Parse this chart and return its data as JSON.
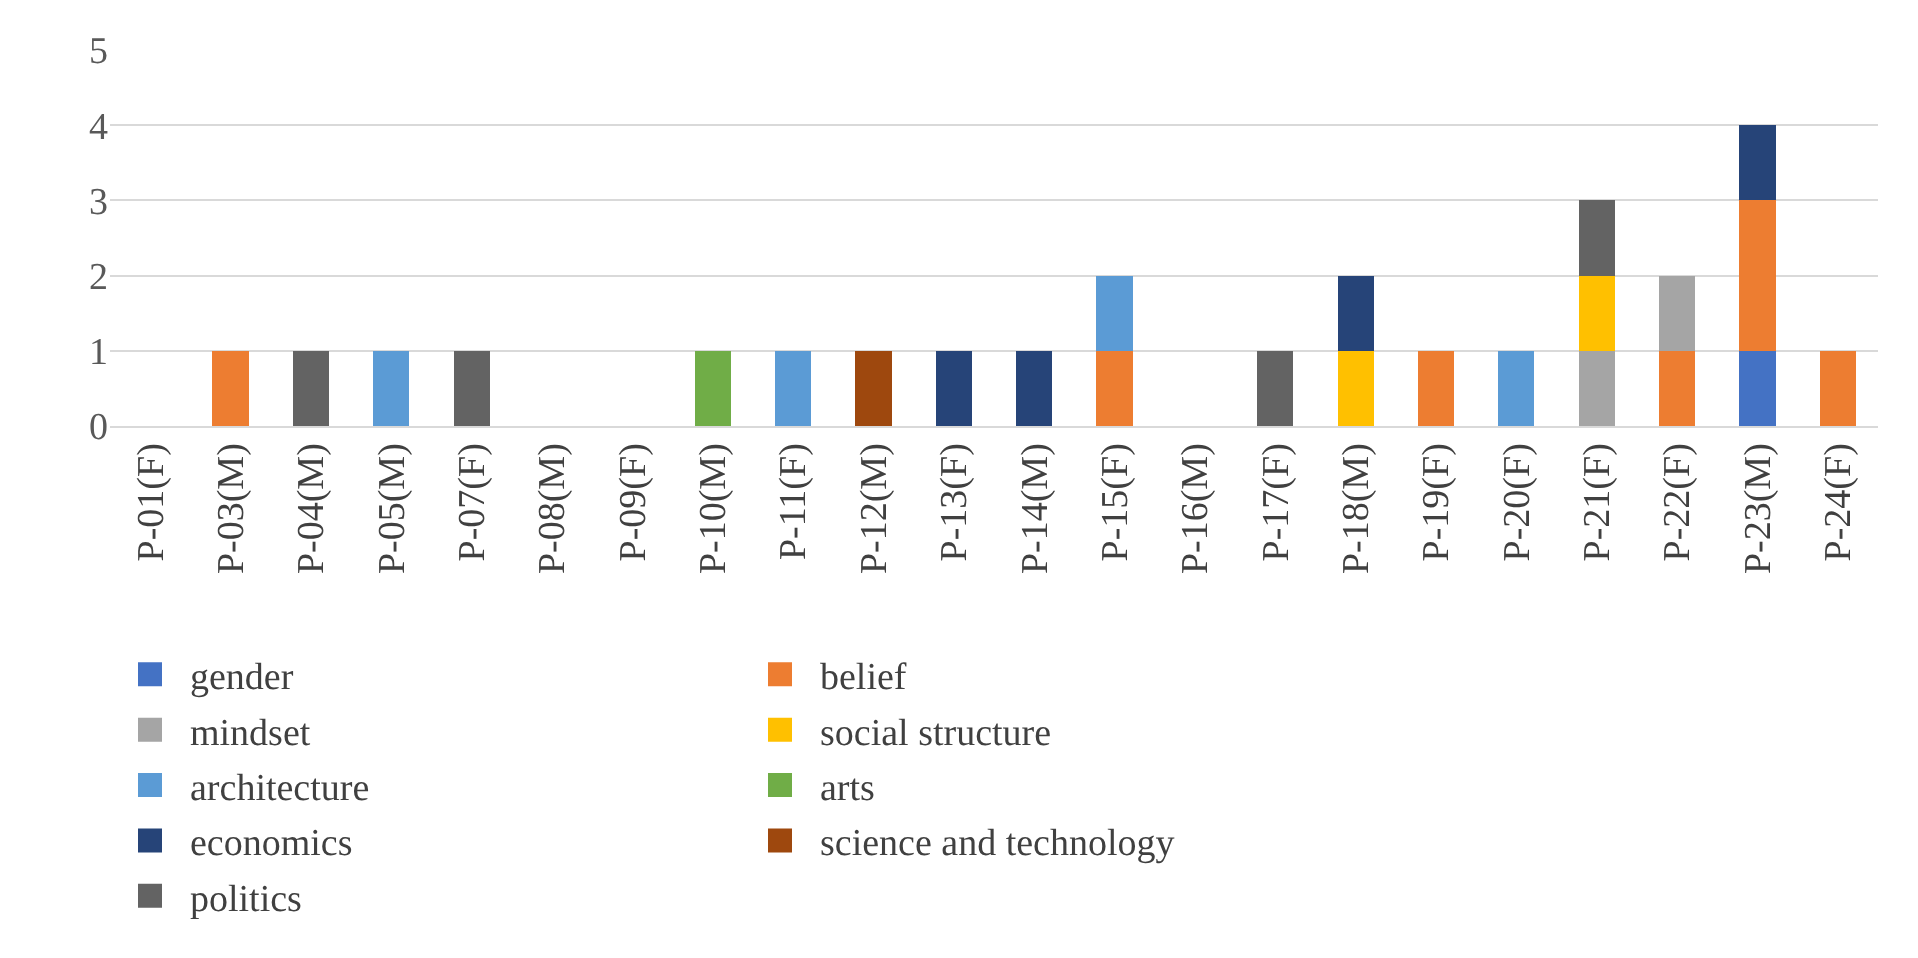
{
  "chart_data": {
    "type": "bar",
    "stacked": true,
    "categories": [
      "P-01(F)",
      "P-03(M)",
      "P-04(M)",
      "P-05(M)",
      "P-07(F)",
      "P-08(M)",
      "P-09(F)",
      "P-10(M)",
      "P-11(F)",
      "P-12(M)",
      "P-13(F)",
      "P-14(M)",
      "P-15(F)",
      "P-16(M)",
      "P-17(F)",
      "P-18(M)",
      "P-19(F)",
      "P-20(F)",
      "P-21(F)",
      "P-22(F)",
      "P-23(M)",
      "P-24(F)"
    ],
    "series": [
      {
        "name": "gender",
        "color": "#4472c4",
        "values": [
          0,
          0,
          0,
          0,
          0,
          0,
          0,
          0,
          0,
          0,
          0,
          0,
          0,
          0,
          0,
          0,
          0,
          0,
          0,
          0,
          1,
          0
        ]
      },
      {
        "name": "belief",
        "color": "#ed7d31",
        "values": [
          0,
          1,
          0,
          0,
          0,
          0,
          0,
          0,
          0,
          0,
          0,
          0,
          1,
          0,
          0,
          0,
          1,
          0,
          0,
          1,
          2,
          1
        ]
      },
      {
        "name": "mindset",
        "color": "#a5a5a5",
        "values": [
          0,
          0,
          0,
          0,
          0,
          0,
          0,
          0,
          0,
          0,
          0,
          0,
          0,
          0,
          0,
          0,
          0,
          0,
          1,
          1,
          0,
          0
        ]
      },
      {
        "name": "social structure",
        "color": "#ffc000",
        "values": [
          0,
          0,
          0,
          0,
          0,
          0,
          0,
          0,
          0,
          0,
          0,
          0,
          0,
          0,
          0,
          1,
          0,
          0,
          1,
          0,
          0,
          0
        ]
      },
      {
        "name": "architecture",
        "color": "#5b9bd5",
        "values": [
          0,
          0,
          0,
          1,
          0,
          0,
          0,
          0,
          1,
          0,
          0,
          0,
          1,
          0,
          0,
          0,
          0,
          1,
          0,
          0,
          0,
          0
        ]
      },
      {
        "name": "arts",
        "color": "#70ad47",
        "values": [
          0,
          0,
          0,
          0,
          0,
          0,
          0,
          1,
          0,
          0,
          0,
          0,
          0,
          0,
          0,
          0,
          0,
          0,
          0,
          0,
          0,
          0
        ]
      },
      {
        "name": "economics",
        "color": "#264478",
        "values": [
          0,
          0,
          0,
          0,
          0,
          0,
          0,
          0,
          0,
          0,
          1,
          1,
          0,
          0,
          0,
          1,
          0,
          0,
          0,
          0,
          1,
          0
        ]
      },
      {
        "name": "science and technology",
        "color": "#9e480e",
        "values": [
          0,
          0,
          0,
          0,
          0,
          0,
          0,
          0,
          0,
          1,
          0,
          0,
          0,
          0,
          0,
          0,
          0,
          0,
          0,
          0,
          0,
          0
        ]
      },
      {
        "name": "politics",
        "color": "#636363",
        "values": [
          0,
          0,
          1,
          0,
          1,
          0,
          0,
          0,
          0,
          0,
          0,
          0,
          0,
          0,
          1,
          0,
          0,
          0,
          1,
          0,
          0,
          0
        ]
      }
    ],
    "ylim": [
      0,
      5
    ],
    "yticks": [
      0,
      1,
      2,
      3,
      4,
      5
    ],
    "grid": "y",
    "legend": "bottom"
  }
}
